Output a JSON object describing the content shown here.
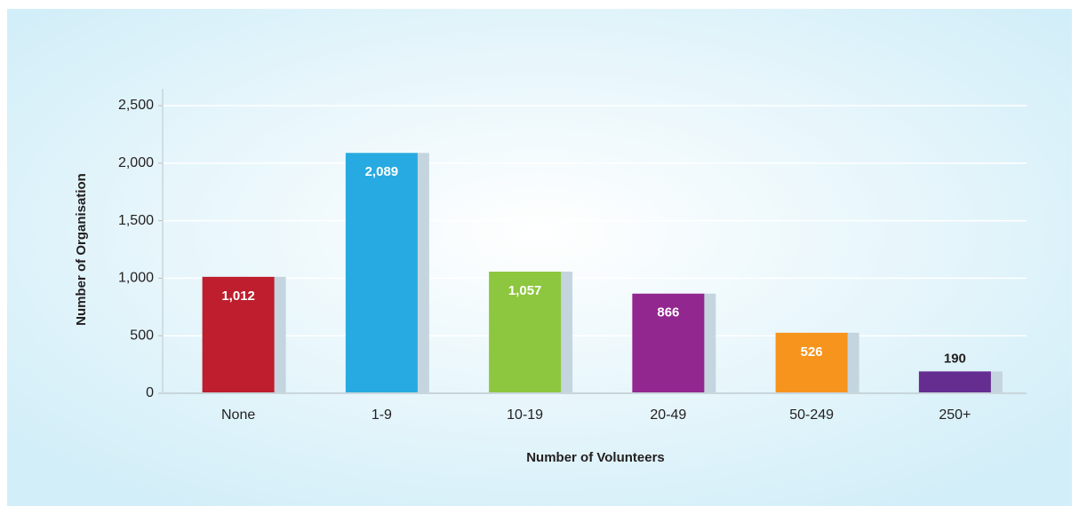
{
  "chart_data": {
    "type": "bar",
    "xlabel": "Number of Volunteers",
    "ylabel": "Number of Organisation",
    "categories": [
      "None",
      "1-9",
      "10-19",
      "20-49",
      "50-249",
      "250+"
    ],
    "values": [
      1012,
      2089,
      1057,
      866,
      526,
      190
    ],
    "value_labels": [
      "1,012",
      "2,089",
      "1,057",
      "866",
      "526",
      "190"
    ],
    "colors": [
      "#be1e2d",
      "#27aae1",
      "#8dc63f",
      "#92278f",
      "#f7941d",
      "#662d91"
    ],
    "ylim": [
      0,
      2500
    ],
    "yticks": [
      0,
      {
        "value": 500,
        "label": "500"
      },
      {
        "value": 1000,
        "label": "1,000"
      },
      {
        "value": 1500,
        "label": "1,500"
      },
      {
        "value": 2000,
        "label": "2,000"
      },
      {
        "value": 2500,
        "label": "2,500"
      }
    ],
    "grid": true
  }
}
